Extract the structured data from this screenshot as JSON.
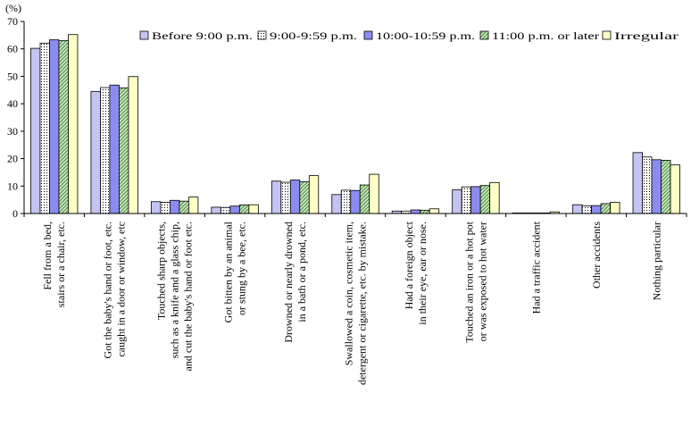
{
  "chart_data": {
    "type": "bar",
    "title": "",
    "xlabel": "",
    "ylabel": "(%)",
    "ylim": [
      0,
      70
    ],
    "yticks": [
      0,
      10,
      20,
      30,
      40,
      50,
      60,
      70
    ],
    "grid": false,
    "legend_position": "top-right",
    "categories": [
      [
        "Fell from a bed,",
        "stairs or a chair, etc."
      ],
      [
        "Got the baby's hand or foot, etc.",
        "caught in a door or window, etc"
      ],
      [
        "Touched sharp objects,",
        "such as a knife and a glass chip,",
        "and cut the baby's hand or foot etc."
      ],
      [
        "Got bitten by an animal",
        "or stung by a bee, etc."
      ],
      [
        "Drowned or nearly drowned",
        "in a bath or a pond, etc."
      ],
      [
        "Swallowed a coin, cosmetic item,",
        "detergent or cigarette, etc. by mistake."
      ],
      [
        "Had a foreign object",
        "in their eye, ear or nose."
      ],
      [
        "Touched an iron or a hot pot",
        "or was exposed to hot water"
      ],
      [
        "Had a traffic accident"
      ],
      [
        "Other accidents"
      ],
      [
        "Nothing particular"
      ]
    ],
    "series": [
      {
        "name": "Before 9:00 p.m.",
        "pattern": "solid",
        "color": "#c4c4f2",
        "values": [
          60.2,
          44.5,
          4.3,
          2.3,
          11.8,
          6.9,
          0.9,
          8.6,
          0.2,
          3.2,
          22.2
        ]
      },
      {
        "name": "9:00-9:59 p.m.",
        "pattern": "dots",
        "color": "#ffffff",
        "values": [
          62.1,
          45.9,
          4.1,
          2.2,
          11.4,
          8.5,
          0.9,
          9.7,
          0.2,
          2.8,
          20.6
        ]
      },
      {
        "name": "10:00-10:59 p.m.",
        "pattern": "solid",
        "color": "#8c8cf0",
        "values": [
          63.3,
          46.8,
          4.8,
          2.7,
          12.2,
          8.4,
          1.3,
          9.8,
          0.2,
          2.9,
          19.6
        ]
      },
      {
        "name": "11:00 p.m. or later",
        "pattern": "hatch",
        "color": "#cfe8bf",
        "values": [
          63.0,
          45.8,
          4.5,
          3.1,
          11.6,
          10.4,
          1.2,
          10.2,
          0.2,
          3.6,
          19.4
        ]
      },
      {
        "name": "Irregular",
        "pattern": "solid",
        "color": "#ffffc6",
        "values": [
          65.2,
          49.9,
          6.0,
          3.2,
          13.8,
          14.3,
          1.7,
          11.3,
          0.6,
          4.1,
          17.7
        ]
      }
    ]
  }
}
